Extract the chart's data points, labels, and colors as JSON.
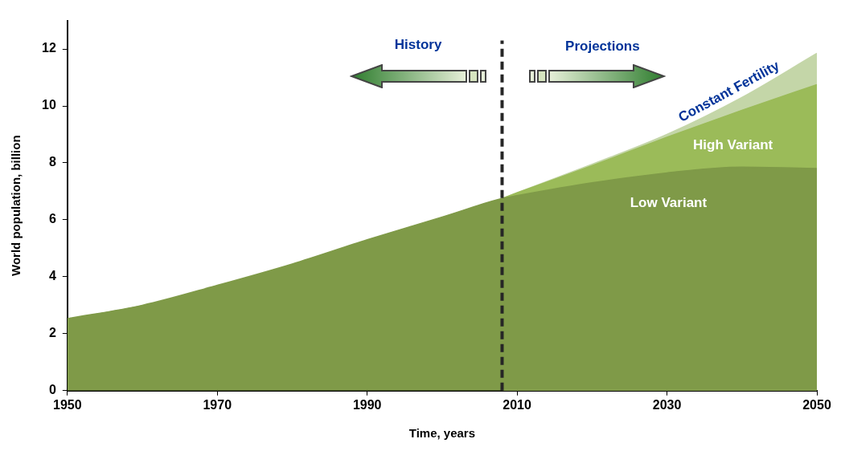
{
  "chart_data": {
    "type": "area",
    "xlabel": "Time, years",
    "ylabel": "World population, billion",
    "xlim": [
      1950,
      2050
    ],
    "xticks": [
      1950,
      1970,
      1990,
      2010,
      2030,
      2050
    ],
    "ylim": [
      0,
      13
    ],
    "yticks": [
      0,
      2,
      4,
      6,
      8,
      10,
      12
    ],
    "grid": false,
    "legend": false,
    "series": [
      {
        "name": "Constant Fertility",
        "color": "#c4d6a8",
        "x": [
          2008,
          2010,
          2020,
          2030,
          2040,
          2050
        ],
        "values": [
          6.75,
          6.95,
          7.95,
          9.0,
          10.3,
          11.85
        ]
      },
      {
        "name": "High Variant",
        "color": "#9bbb59",
        "x": [
          2008,
          2010,
          2020,
          2030,
          2040,
          2050
        ],
        "values": [
          6.75,
          6.95,
          7.9,
          8.9,
          9.85,
          10.75
        ]
      },
      {
        "name": "Low Variant",
        "color": "#7f9a48",
        "x": [
          1950,
          1960,
          1970,
          1980,
          1990,
          2000,
          2008,
          2010,
          2020,
          2030,
          2040,
          2050
        ],
        "values": [
          2.53,
          3.0,
          3.7,
          4.45,
          5.3,
          6.1,
          6.75,
          6.85,
          7.3,
          7.65,
          7.85,
          7.8
        ]
      }
    ],
    "ref_lines": [
      {
        "axis": "x",
        "value": 2008,
        "color": "#262626",
        "line_style": "dashed"
      }
    ],
    "annotations": [
      "History",
      "Projections"
    ]
  }
}
